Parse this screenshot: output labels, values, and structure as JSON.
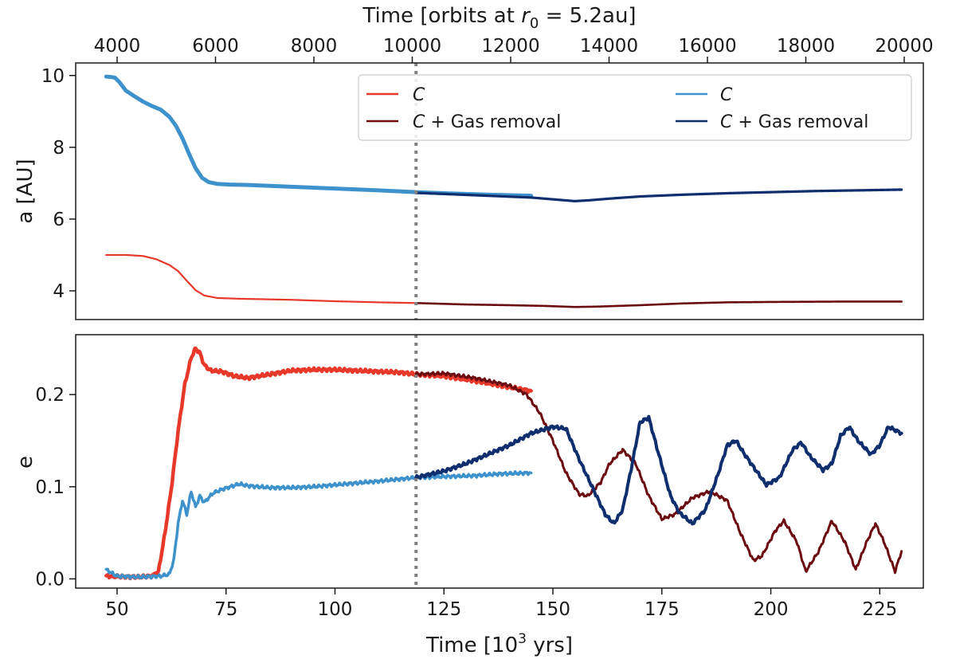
{
  "chart_data": [
    {
      "type": "line",
      "panel": "top",
      "ylabel": "a [AU]",
      "top_xlabel_prefix": "Time [orbits at ",
      "top_xlabel_math_r": "r",
      "top_xlabel_math_sub": "0",
      "top_xlabel_suffix": " = 5.2au]",
      "top_xticks": [
        4000,
        6000,
        8000,
        10000,
        12000,
        14000,
        16000,
        18000,
        20000
      ],
      "xlim": [
        40.5,
        235
      ],
      "ylim": [
        3.2,
        10.35
      ],
      "yticks": [
        4,
        6,
        8,
        10
      ],
      "vline_x": 118.6,
      "legend": [
        {
          "symbol": "C",
          "text": ""
        },
        {
          "symbol": "C",
          "text": " + Gas removal"
        },
        {
          "symbol": "C",
          "text": ""
        },
        {
          "symbol": "C",
          "text": " + Gas removal"
        }
      ],
      "series": [
        {
          "name": "C",
          "color": "#e8382a",
          "width": 2.2,
          "points": [
            [
              47.5,
              5.0
            ],
            [
              52,
              5.0
            ],
            [
              56,
              4.97
            ],
            [
              59,
              4.88
            ],
            [
              62,
              4.72
            ],
            [
              64,
              4.55
            ],
            [
              66,
              4.28
            ],
            [
              68,
              4.02
            ],
            [
              70,
              3.87
            ],
            [
              73,
              3.8
            ],
            [
              78,
              3.78
            ],
            [
              90,
              3.75
            ],
            [
              100,
              3.71
            ],
            [
              110,
              3.68
            ],
            [
              118.6,
              3.66
            ]
          ]
        },
        {
          "name": "C + Gas removal",
          "color": "#6b0a0f",
          "width": 2.6,
          "points": [
            [
              118.6,
              3.66
            ],
            [
              130,
              3.62
            ],
            [
              140,
              3.6
            ],
            [
              148,
              3.58
            ],
            [
              155,
              3.55
            ],
            [
              160,
              3.56
            ],
            [
              170,
              3.6
            ],
            [
              180,
              3.65
            ],
            [
              190,
              3.68
            ],
            [
              200,
              3.69
            ],
            [
              215,
              3.7
            ],
            [
              230,
              3.7
            ]
          ]
        },
        {
          "name": "C",
          "color": "#3e92cc",
          "width": 5.0,
          "points": [
            [
              47.5,
              9.97
            ],
            [
              48.5,
              9.96
            ],
            [
              49.5,
              9.94
            ],
            [
              50.5,
              9.82
            ],
            [
              52,
              9.58
            ],
            [
              54,
              9.42
            ],
            [
              56,
              9.27
            ],
            [
              58,
              9.15
            ],
            [
              60,
              9.05
            ],
            [
              62,
              8.85
            ],
            [
              63.5,
              8.6
            ],
            [
              65,
              8.25
            ],
            [
              66.5,
              7.82
            ],
            [
              68,
              7.42
            ],
            [
              69.5,
              7.15
            ],
            [
              71,
              7.03
            ],
            [
              73,
              6.98
            ],
            [
              76,
              6.96
            ],
            [
              80,
              6.95
            ],
            [
              90,
              6.9
            ],
            [
              100,
              6.85
            ],
            [
              110,
              6.8
            ],
            [
              118.6,
              6.75
            ],
            [
              125,
              6.72
            ],
            [
              135,
              6.68
            ],
            [
              145,
              6.65
            ]
          ]
        },
        {
          "name": "C + Gas removal",
          "color": "#0e2e6e",
          "width": 3.2,
          "points": [
            [
              118.6,
              6.73
            ],
            [
              125,
              6.7
            ],
            [
              135,
              6.65
            ],
            [
              145,
              6.6
            ],
            [
              150,
              6.55
            ],
            [
              155,
              6.5
            ],
            [
              158,
              6.52
            ],
            [
              163,
              6.57
            ],
            [
              170,
              6.63
            ],
            [
              180,
              6.68
            ],
            [
              190,
              6.72
            ],
            [
              200,
              6.75
            ],
            [
              210,
              6.78
            ],
            [
              220,
              6.8
            ],
            [
              230,
              6.82
            ]
          ]
        }
      ]
    },
    {
      "type": "line",
      "panel": "bottom",
      "xlabel_prefix": "Time [10",
      "xlabel_sup": "3",
      "xlabel_suffix": " yrs]",
      "ylabel": "e",
      "xlim": [
        40.5,
        235
      ],
      "ylim": [
        -0.01,
        0.265
      ],
      "xticks": [
        50,
        75,
        100,
        125,
        150,
        175,
        200,
        225
      ],
      "yticks": [
        "0.0",
        "0.1",
        "0.2"
      ],
      "vline_x": 118.6,
      "series": [
        {
          "name": "C",
          "color": "#e8382a",
          "width": 4.5,
          "points": [
            [
              47.5,
              0.003
            ],
            [
              55,
              0.002
            ],
            [
              58,
              0.003
            ],
            [
              59.5,
              0.008
            ],
            [
              61,
              0.05
            ],
            [
              62.5,
              0.1
            ],
            [
              64,
              0.16
            ],
            [
              65.5,
              0.21
            ],
            [
              67,
              0.24
            ],
            [
              68,
              0.25
            ],
            [
              69,
              0.245
            ],
            [
              70,
              0.232
            ],
            [
              71.5,
              0.226
            ],
            [
              74,
              0.225
            ],
            [
              77,
              0.22
            ],
            [
              80,
              0.218
            ],
            [
              85,
              0.222
            ],
            [
              90,
              0.226
            ],
            [
              95,
              0.227
            ],
            [
              100,
              0.227
            ],
            [
              105,
              0.226
            ],
            [
              110,
              0.225
            ],
            [
              115,
              0.224
            ],
            [
              118.6,
              0.222
            ],
            [
              125,
              0.22
            ],
            [
              132,
              0.215
            ],
            [
              140,
              0.208
            ],
            [
              145,
              0.204
            ]
          ]
        },
        {
          "name": "C + Gas removal",
          "color": "#6b0a0f",
          "width": 3.0,
          "points": [
            [
              118.6,
              0.222
            ],
            [
              125,
              0.223
            ],
            [
              132,
              0.218
            ],
            [
              140,
              0.21
            ],
            [
              144,
              0.2
            ],
            [
              147,
              0.18
            ],
            [
              150,
              0.15
            ],
            [
              153,
              0.115
            ],
            [
              156,
              0.092
            ],
            [
              158,
              0.09
            ],
            [
              161,
              0.105
            ],
            [
              163,
              0.125
            ],
            [
              166,
              0.14
            ],
            [
              169,
              0.125
            ],
            [
              172,
              0.09
            ],
            [
              175,
              0.065
            ],
            [
              178,
              0.07
            ],
            [
              182,
              0.088
            ],
            [
              186,
              0.095
            ],
            [
              190,
              0.085
            ],
            [
              193,
              0.05
            ],
            [
              196,
              0.02
            ],
            [
              198,
              0.025
            ],
            [
              201,
              0.052
            ],
            [
              203,
              0.063
            ],
            [
              206,
              0.04
            ],
            [
              208,
              0.008
            ],
            [
              211,
              0.03
            ],
            [
              214,
              0.063
            ],
            [
              217,
              0.04
            ],
            [
              219.5,
              0.01
            ],
            [
              222,
              0.04
            ],
            [
              224,
              0.06
            ],
            [
              226,
              0.04
            ],
            [
              228.5,
              0.008
            ],
            [
              230,
              0.03
            ]
          ]
        },
        {
          "name": "C",
          "color": "#3e92cc",
          "width": 3.5,
          "points": [
            [
              47.5,
              0.01
            ],
            [
              50,
              0.003
            ],
            [
              55,
              0.002
            ],
            [
              60,
              0.003
            ],
            [
              62,
              0.005
            ],
            [
              63,
              0.02
            ],
            [
              64,
              0.06
            ],
            [
              65,
              0.085
            ],
            [
              66,
              0.07
            ],
            [
              67,
              0.095
            ],
            [
              68,
              0.078
            ],
            [
              69,
              0.09
            ],
            [
              70,
              0.083
            ],
            [
              72,
              0.093
            ],
            [
              74,
              0.097
            ],
            [
              76,
              0.1
            ],
            [
              78,
              0.103
            ],
            [
              80,
              0.101
            ],
            [
              85,
              0.099
            ],
            [
              90,
              0.099
            ],
            [
              95,
              0.1
            ],
            [
              100,
              0.102
            ],
            [
              105,
              0.104
            ],
            [
              110,
              0.106
            ],
            [
              118.6,
              0.11
            ],
            [
              125,
              0.111
            ],
            [
              132,
              0.112
            ],
            [
              138,
              0.114
            ],
            [
              145,
              0.115
            ]
          ]
        },
        {
          "name": "C + Gas removal",
          "color": "#0e2e6e",
          "width": 4.0,
          "points": [
            [
              118.6,
              0.11
            ],
            [
              125,
              0.117
            ],
            [
              130,
              0.125
            ],
            [
              135,
              0.135
            ],
            [
              140,
              0.145
            ],
            [
              145,
              0.158
            ],
            [
              150,
              0.165
            ],
            [
              153,
              0.163
            ],
            [
              156,
              0.13
            ],
            [
              159,
              0.1
            ],
            [
              162,
              0.07
            ],
            [
              164,
              0.06
            ],
            [
              166,
              0.075
            ],
            [
              168,
              0.12
            ],
            [
              170,
              0.17
            ],
            [
              172,
              0.175
            ],
            [
              174,
              0.14
            ],
            [
              177,
              0.09
            ],
            [
              179,
              0.072
            ],
            [
              182,
              0.06
            ],
            [
              185,
              0.075
            ],
            [
              188,
              0.115
            ],
            [
              190,
              0.145
            ],
            [
              192,
              0.15
            ],
            [
              194,
              0.135
            ],
            [
              197,
              0.115
            ],
            [
              199,
              0.102
            ],
            [
              202,
              0.11
            ],
            [
              205,
              0.14
            ],
            [
              207,
              0.148
            ],
            [
              209,
              0.133
            ],
            [
              212,
              0.118
            ],
            [
              214,
              0.125
            ],
            [
              216,
              0.155
            ],
            [
              218,
              0.165
            ],
            [
              220,
              0.15
            ],
            [
              223,
              0.135
            ],
            [
              225,
              0.145
            ],
            [
              227,
              0.165
            ],
            [
              230,
              0.158
            ]
          ]
        }
      ]
    }
  ]
}
